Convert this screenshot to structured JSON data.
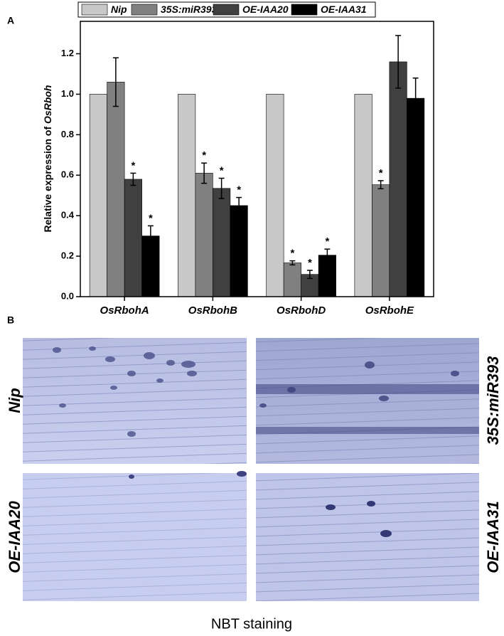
{
  "chart_data": {
    "type": "bar",
    "panel": "A",
    "ylabel": {
      "text": "Relative expression of",
      "italic": "OsRboh"
    },
    "categories": [
      "OsRbohA",
      "OsRbohB",
      "OsRbohD",
      "OsRbohE"
    ],
    "series": [
      {
        "name": "Nip",
        "color": "#c8c8c8",
        "values": [
          1.0,
          1.0,
          1.0,
          1.0
        ],
        "errors": [
          null,
          null,
          null,
          null
        ],
        "significance": [
          null,
          null,
          null,
          null
        ]
      },
      {
        "name": "35S:miR393",
        "color": "#808080",
        "values": [
          1.06,
          0.61,
          0.167,
          0.553
        ],
        "errors": [
          0.12,
          0.05,
          0.01,
          0.02
        ],
        "significance": [
          null,
          "*",
          "*",
          "*"
        ]
      },
      {
        "name": "OE-IAA20",
        "color": "#404040",
        "values": [
          0.58,
          0.535,
          0.11,
          1.16
        ],
        "errors": [
          0.03,
          0.05,
          0.02,
          0.13
        ],
        "significance": [
          "*",
          "*",
          "*",
          null
        ]
      },
      {
        "name": "OE-IAA31",
        "color": "#000000",
        "values": [
          0.3,
          0.45,
          0.205,
          0.98
        ],
        "errors": [
          0.05,
          0.04,
          0.03,
          0.1
        ],
        "significance": [
          "*",
          "*",
          "*",
          null
        ]
      }
    ],
    "ylim": [
      0,
      1.36
    ],
    "yticks": [
      {
        "value": 0,
        "label": "0.0"
      },
      0.2,
      0.4,
      0.6,
      0.8,
      {
        "value": 1,
        "label": "1.0"
      },
      1.2
    ],
    "legend": "top"
  },
  "images": {
    "panel": "B",
    "labels": [
      "Nip",
      "35S:miR393",
      "OE-IAA20",
      "OE-IAA31"
    ],
    "caption": "NBT staining"
  }
}
